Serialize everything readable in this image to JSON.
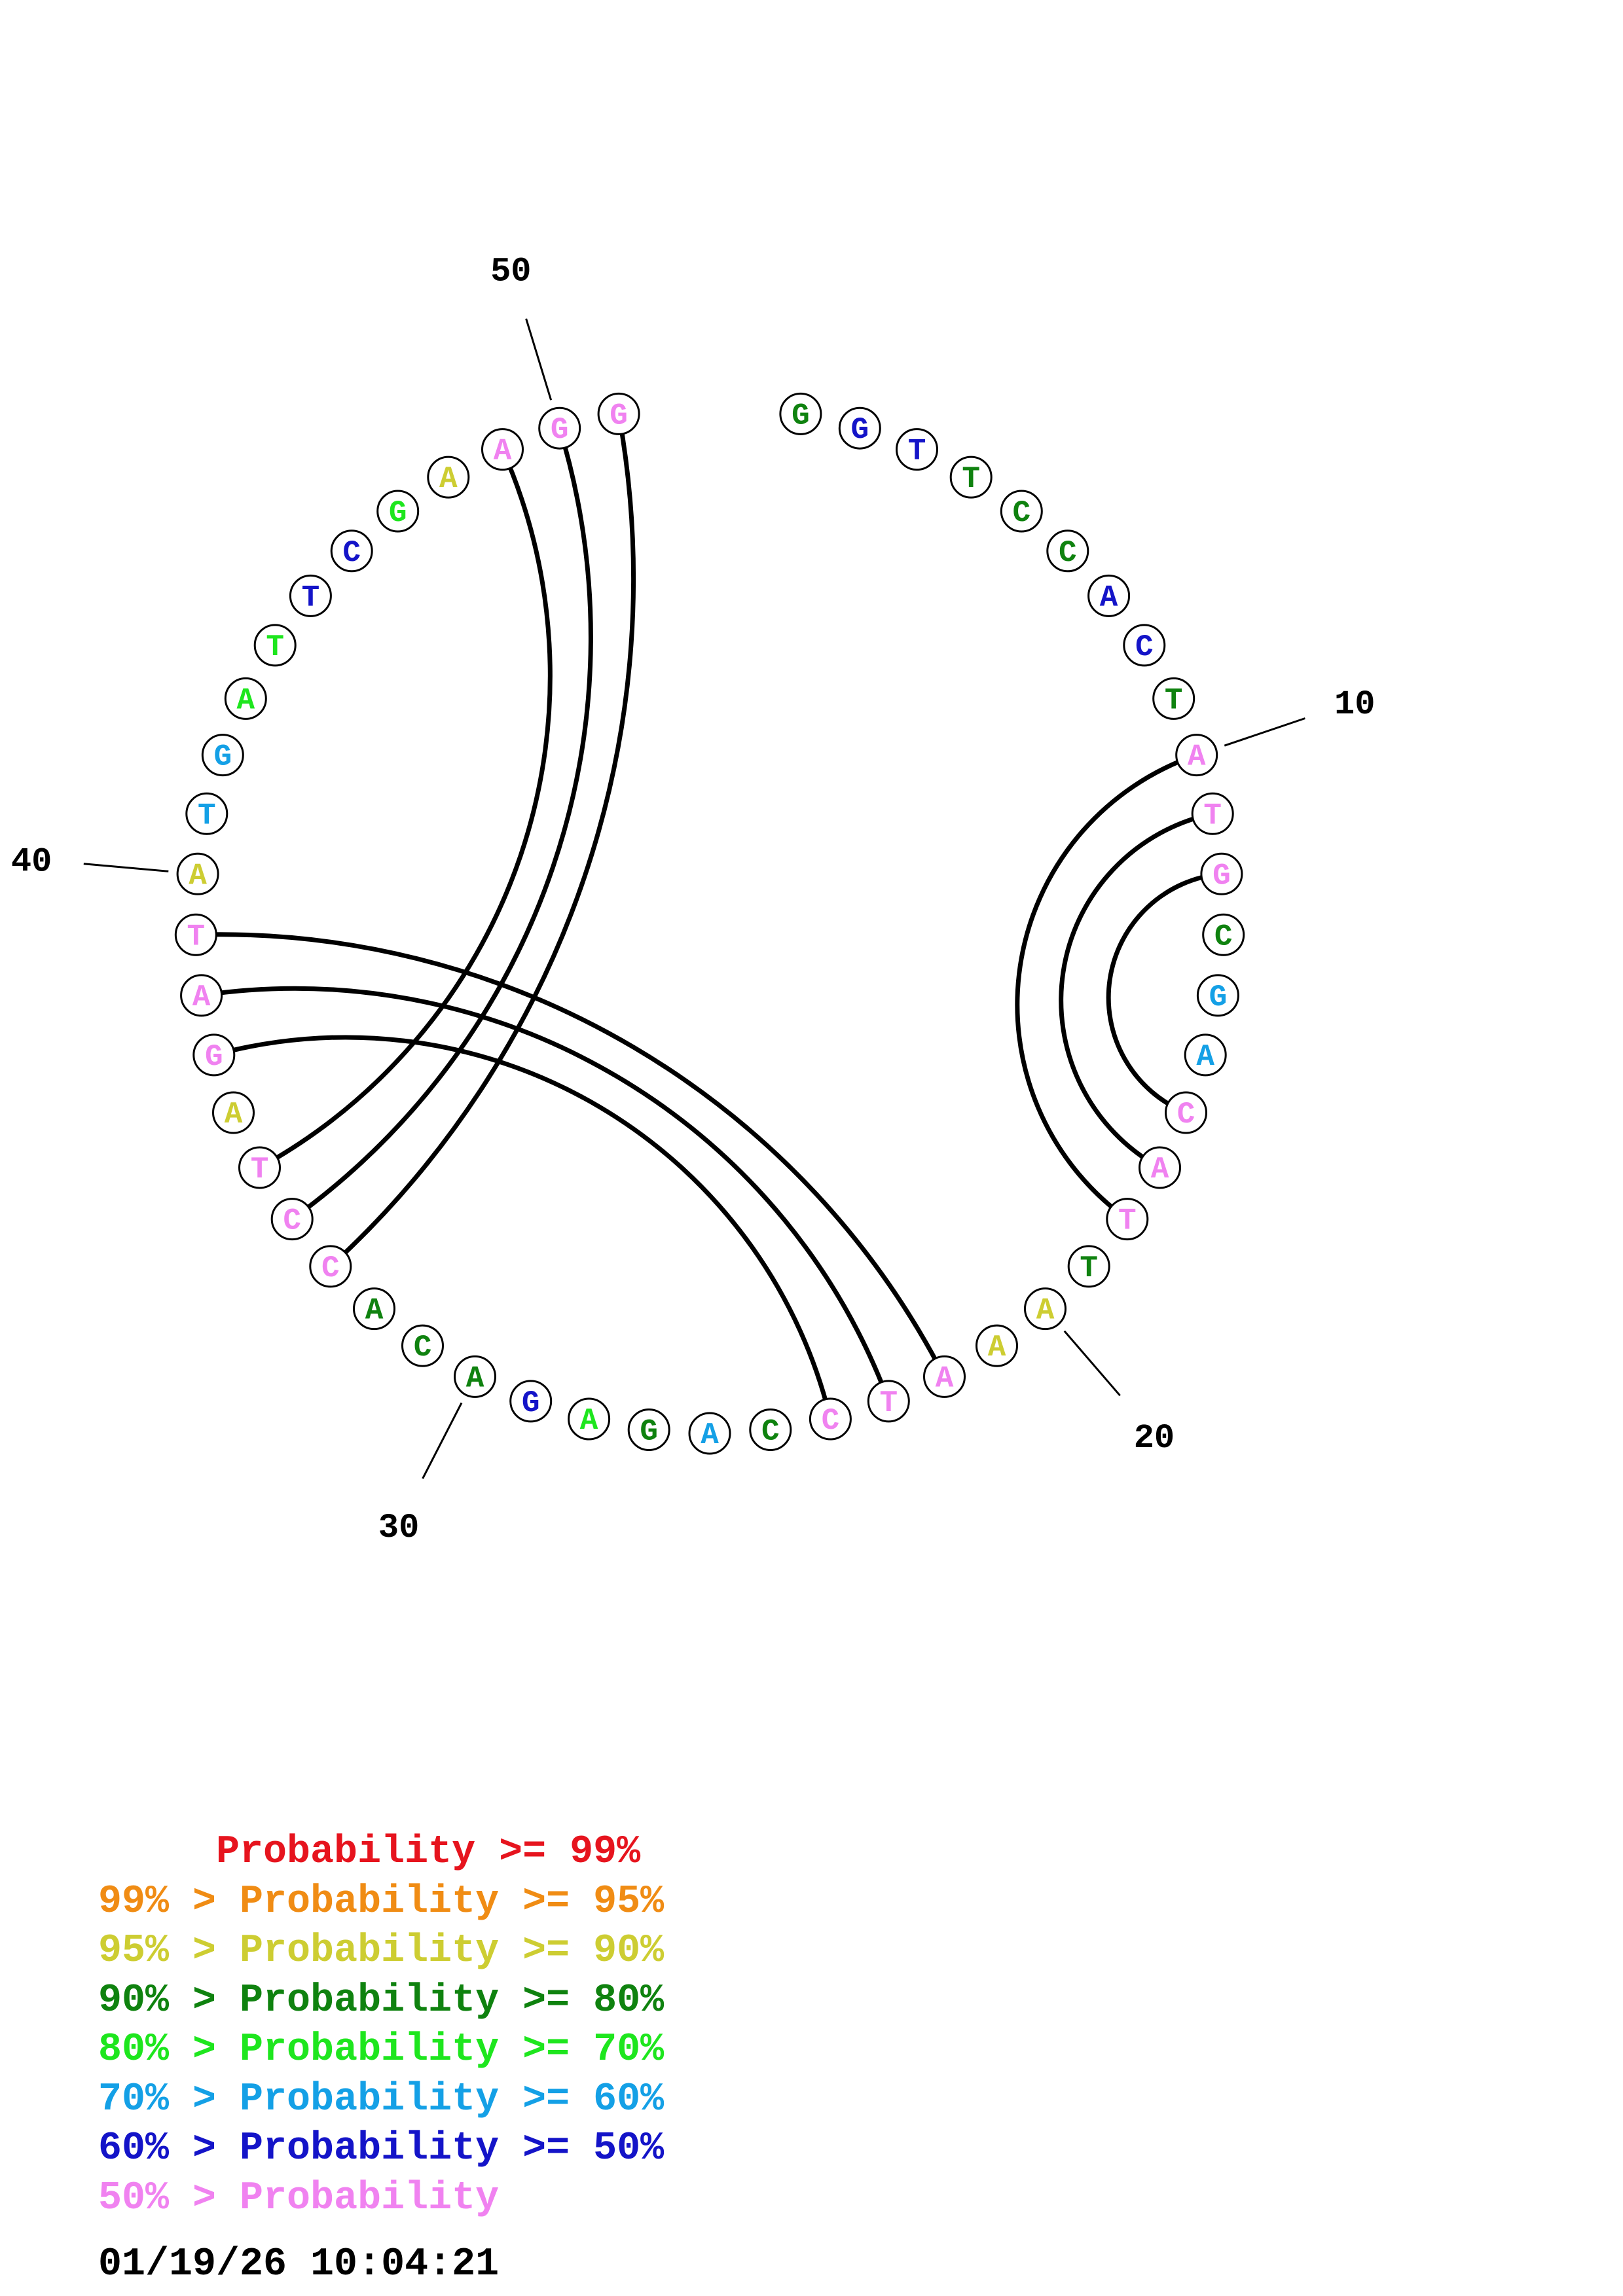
{
  "colors": {
    "p99": "#e6141e",
    "p95": "#f08c14",
    "p90": "#cdcd32",
    "p80": "#0f820f",
    "p70": "#1ee61e",
    "p60": "#14a0e6",
    "p50": "#1414c8",
    "plow": "#f082f0"
  },
  "sequence": [
    {
      "n": 1,
      "base": "G",
      "color": "p80"
    },
    {
      "n": 2,
      "base": "G",
      "color": "p50"
    },
    {
      "n": 3,
      "base": "T",
      "color": "p50"
    },
    {
      "n": 4,
      "base": "T",
      "color": "p80"
    },
    {
      "n": 5,
      "base": "C",
      "color": "p80"
    },
    {
      "n": 6,
      "base": "C",
      "color": "p80"
    },
    {
      "n": 7,
      "base": "A",
      "color": "p50"
    },
    {
      "n": 8,
      "base": "C",
      "color": "p50"
    },
    {
      "n": 9,
      "base": "T",
      "color": "p80"
    },
    {
      "n": 10,
      "base": "A",
      "color": "plow"
    },
    {
      "n": 11,
      "base": "T",
      "color": "plow"
    },
    {
      "n": 12,
      "base": "G",
      "color": "plow"
    },
    {
      "n": 13,
      "base": "C",
      "color": "p80"
    },
    {
      "n": 14,
      "base": "G",
      "color": "p60"
    },
    {
      "n": 15,
      "base": "A",
      "color": "p60"
    },
    {
      "n": 16,
      "base": "C",
      "color": "plow"
    },
    {
      "n": 17,
      "base": "A",
      "color": "plow"
    },
    {
      "n": 18,
      "base": "T",
      "color": "plow"
    },
    {
      "n": 19,
      "base": "T",
      "color": "p80"
    },
    {
      "n": 20,
      "base": "A",
      "color": "p90"
    },
    {
      "n": 21,
      "base": "A",
      "color": "p90"
    },
    {
      "n": 22,
      "base": "A",
      "color": "plow"
    },
    {
      "n": 23,
      "base": "T",
      "color": "plow"
    },
    {
      "n": 24,
      "base": "C",
      "color": "plow"
    },
    {
      "n": 25,
      "base": "C",
      "color": "p80"
    },
    {
      "n": 26,
      "base": "A",
      "color": "p60"
    },
    {
      "n": 27,
      "base": "G",
      "color": "p80"
    },
    {
      "n": 28,
      "base": "A",
      "color": "p70"
    },
    {
      "n": 29,
      "base": "G",
      "color": "p50"
    },
    {
      "n": 30,
      "base": "A",
      "color": "p80"
    },
    {
      "n": 31,
      "base": "C",
      "color": "p80"
    },
    {
      "n": 32,
      "base": "A",
      "color": "p80"
    },
    {
      "n": 33,
      "base": "C",
      "color": "plow"
    },
    {
      "n": 34,
      "base": "C",
      "color": "plow"
    },
    {
      "n": 35,
      "base": "T",
      "color": "plow"
    },
    {
      "n": 36,
      "base": "A",
      "color": "p90"
    },
    {
      "n": 37,
      "base": "G",
      "color": "plow"
    },
    {
      "n": 38,
      "base": "A",
      "color": "plow"
    },
    {
      "n": 39,
      "base": "T",
      "color": "plow"
    },
    {
      "n": 40,
      "base": "A",
      "color": "p90"
    },
    {
      "n": 41,
      "base": "T",
      "color": "p60"
    },
    {
      "n": 42,
      "base": "G",
      "color": "p60"
    },
    {
      "n": 43,
      "base": "A",
      "color": "p70"
    },
    {
      "n": 44,
      "base": "T",
      "color": "p70"
    },
    {
      "n": 45,
      "base": "T",
      "color": "p50"
    },
    {
      "n": 46,
      "base": "C",
      "color": "p50"
    },
    {
      "n": 47,
      "base": "G",
      "color": "p70"
    },
    {
      "n": 48,
      "base": "A",
      "color": "p90"
    },
    {
      "n": 49,
      "base": "A",
      "color": "plow"
    },
    {
      "n": 50,
      "base": "G",
      "color": "plow"
    },
    {
      "n": 51,
      "base": "G",
      "color": "plow"
    }
  ],
  "pairs": [
    [
      10,
      18
    ],
    [
      11,
      17
    ],
    [
      12,
      16
    ],
    [
      22,
      39
    ],
    [
      23,
      38
    ],
    [
      24,
      37
    ],
    [
      33,
      51
    ],
    [
      34,
      50
    ],
    [
      35,
      49
    ]
  ],
  "position_labels": [
    "10",
    "20",
    "30",
    "40",
    "50"
  ],
  "legend": [
    {
      "text": "     Probability >= 99%",
      "color": "p99"
    },
    {
      "text": "99% > Probability >= 95%",
      "color": "p95"
    },
    {
      "text": "95% > Probability >= 90%",
      "color": "p90"
    },
    {
      "text": "90% > Probability >= 80%",
      "color": "p80"
    },
    {
      "text": "80% > Probability >= 70%",
      "color": "p70"
    },
    {
      "text": "70% > Probability >= 60%",
      "color": "p60"
    },
    {
      "text": "60% > Probability >= 50%",
      "color": "p50"
    },
    {
      "text": "50% > Probability",
      "color": "plow"
    }
  ],
  "timestamp": "01/19/26 10:04:21"
}
